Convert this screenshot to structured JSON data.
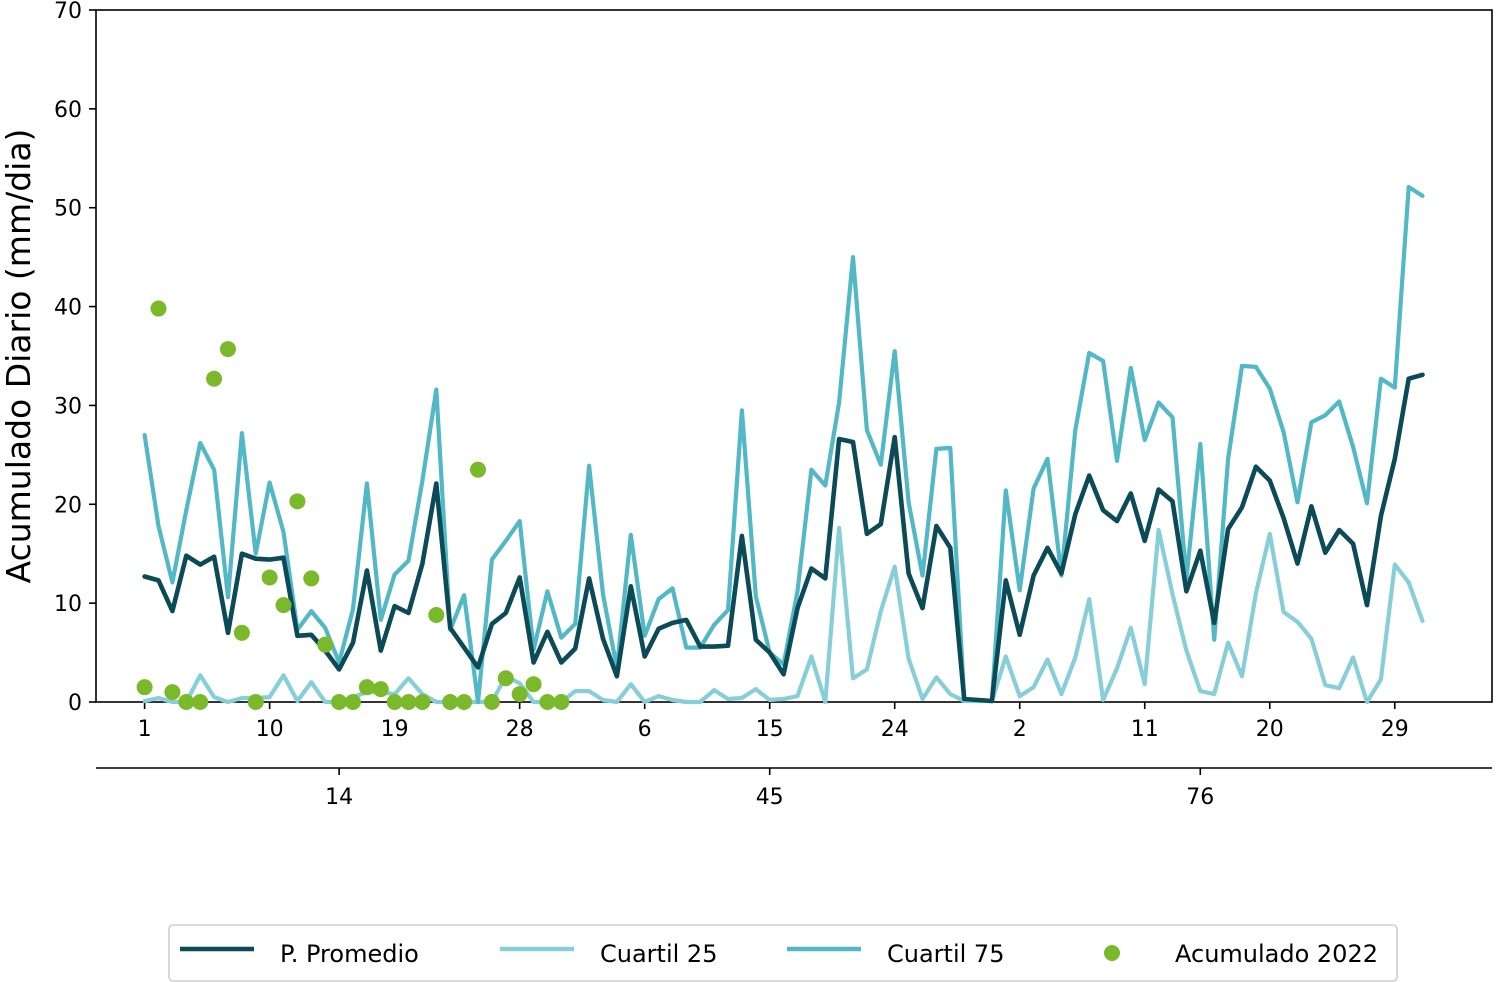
{
  "chart_data": {
    "type": "line",
    "ylabel": "Acumulado Diario (mm/dia)",
    "ylim": [
      0,
      70
    ],
    "yticks": [
      0,
      10,
      20,
      30,
      40,
      50,
      60,
      70
    ],
    "xlim": [
      -3.5,
      97
    ],
    "x": [
      0,
      1,
      2,
      3,
      4,
      5,
      6,
      7,
      8,
      9,
      10,
      11,
      12,
      13,
      14,
      15,
      16,
      17,
      18,
      19,
      20,
      21,
      22,
      23,
      24,
      25,
      26,
      27,
      28,
      29,
      30,
      31,
      32,
      33,
      34,
      35,
      36,
      37,
      38,
      39,
      40,
      41,
      42,
      43,
      44,
      45,
      46,
      47,
      48,
      49,
      50,
      51,
      52,
      53,
      54,
      55,
      56,
      57,
      58,
      59,
      60,
      61,
      62,
      63,
      64,
      65,
      66,
      67,
      68,
      69,
      70,
      71,
      72,
      73,
      74,
      75,
      76,
      77,
      78,
      79,
      80,
      81,
      82,
      83,
      84,
      85,
      86,
      87,
      88,
      89,
      90,
      91,
      92
    ],
    "xtick_labels_primary": [
      {
        "x": 0,
        "label": "1"
      },
      {
        "x": 9,
        "label": "10"
      },
      {
        "x": 18,
        "label": "19"
      },
      {
        "x": 27,
        "label": "28"
      },
      {
        "x": 36,
        "label": "6"
      },
      {
        "x": 45,
        "label": "15"
      },
      {
        "x": 54,
        "label": "24"
      },
      {
        "x": 63,
        "label": "2"
      },
      {
        "x": 72,
        "label": "11"
      },
      {
        "x": 81,
        "label": "20"
      },
      {
        "x": 90,
        "label": "29"
      }
    ],
    "xtick_labels_secondary": [
      {
        "x": 14,
        "label": "14"
      },
      {
        "x": 45,
        "label": "45"
      },
      {
        "x": 76,
        "label": "76"
      }
    ],
    "series": [
      {
        "name": "P. Promedio",
        "color": "#0b4a57",
        "style": "line",
        "values": [
          12.7,
          12.3,
          9.2,
          14.8,
          13.9,
          14.7,
          7.0,
          15.0,
          14.5,
          14.4,
          14.6,
          6.7,
          6.8,
          5.2,
          3.3,
          6.0,
          13.3,
          5.2,
          9.7,
          9.0,
          14.0,
          22.1,
          7.5,
          5.5,
          3.5,
          7.9,
          9.0,
          12.6,
          4.0,
          7.1,
          4.0,
          5.4,
          12.5,
          6.4,
          2.6,
          11.7,
          4.6,
          7.4,
          8.0,
          8.3,
          5.6,
          5.6,
          5.7,
          16.8,
          6.3,
          5.0,
          2.8,
          9.5,
          13.5,
          12.5,
          26.6,
          26.3,
          17.0,
          18.0,
          26.8,
          13.0,
          9.5,
          17.8,
          15.6,
          0.3,
          0.2,
          0.1,
          12.3,
          6.8,
          12.8,
          15.6,
          13.0,
          19.0,
          22.9,
          19.4,
          18.3,
          21.1,
          16.3,
          21.5,
          20.3,
          11.2,
          15.3,
          8.0,
          17.5,
          19.7,
          23.8,
          22.4,
          18.6,
          14.0,
          19.8,
          15.1,
          17.4,
          16.0,
          9.8,
          18.8,
          24.6,
          32.7,
          33.1
        ]
      },
      {
        "name": "Cuartil 25",
        "color": "#87cfd8",
        "style": "line",
        "values": [
          0.1,
          0.4,
          0.0,
          0.0,
          2.7,
          0.5,
          0.0,
          0.4,
          0.4,
          0.5,
          2.7,
          0.1,
          2.0,
          0.0,
          0.0,
          0.5,
          1.0,
          1.0,
          0.8,
          2.4,
          0.8,
          0.0,
          0.0,
          0.0,
          0.0,
          0.0,
          2.6,
          1.9,
          0.0,
          0.0,
          0.0,
          1.1,
          1.1,
          0.2,
          0.0,
          1.8,
          0.0,
          0.6,
          0.2,
          0.0,
          0.0,
          1.2,
          0.3,
          0.4,
          1.3,
          0.2,
          0.3,
          0.6,
          4.6,
          0.0,
          17.6,
          2.4,
          3.3,
          9.2,
          13.7,
          4.4,
          0.3,
          2.5,
          0.8,
          0.1,
          0.1,
          0.1,
          4.6,
          0.6,
          1.5,
          4.3,
          0.8,
          4.5,
          10.4,
          0.2,
          3.4,
          7.5,
          1.8,
          17.4,
          10.9,
          5.2,
          1.1,
          0.8,
          6.0,
          2.6,
          11.0,
          17.0,
          9.1,
          8.1,
          6.4,
          1.7,
          1.4,
          4.5,
          0.0,
          2.3,
          13.9,
          12.1,
          8.2
        ]
      },
      {
        "name": "Cuartil 75",
        "color": "#52b8c5",
        "style": "line",
        "values": [
          27.0,
          17.8,
          12.1,
          19.4,
          26.2,
          23.5,
          10.6,
          27.2,
          15.0,
          22.2,
          17.2,
          7.3,
          9.2,
          7.5,
          4.0,
          9.4,
          22.1,
          8.3,
          12.9,
          14.3,
          22.4,
          31.6,
          7.3,
          10.8,
          0.0,
          14.4,
          16.3,
          18.3,
          5.3,
          11.2,
          6.5,
          7.9,
          23.9,
          10.9,
          3.4,
          16.9,
          6.7,
          10.4,
          11.5,
          5.5,
          5.5,
          7.8,
          9.3,
          29.5,
          10.7,
          5.0,
          3.8,
          11.2,
          23.5,
          21.9,
          30.3,
          45.0,
          27.5,
          24.0,
          35.5,
          20.2,
          12.8,
          25.6,
          25.7,
          0.3,
          0.2,
          0.1,
          21.4,
          11.3,
          21.6,
          24.6,
          12.8,
          27.5,
          35.3,
          34.5,
          24.4,
          33.8,
          26.5,
          30.3,
          28.8,
          12.5,
          26.1,
          6.3,
          24.6,
          34.0,
          33.9,
          31.7,
          27.3,
          20.2,
          28.3,
          29.0,
          30.4,
          25.8,
          20.1,
          32.7,
          31.8,
          52.1,
          51.2
        ]
      },
      {
        "name": "Acumulado 2022",
        "color": "#7ab929",
        "style": "scatter",
        "points": [
          [
            0,
            1.5
          ],
          [
            1,
            39.8
          ],
          [
            2,
            1.0
          ],
          [
            3,
            0.0
          ],
          [
            4,
            0.0
          ],
          [
            5,
            32.7
          ],
          [
            6,
            35.7
          ],
          [
            7,
            7.0
          ],
          [
            8,
            0.0
          ],
          [
            9,
            12.6
          ],
          [
            10,
            9.8
          ],
          [
            11,
            20.3
          ],
          [
            12,
            12.5
          ],
          [
            13,
            5.8
          ],
          [
            14,
            0.0
          ],
          [
            15,
            0.0
          ],
          [
            16,
            1.5
          ],
          [
            17,
            1.3
          ],
          [
            18,
            0.0
          ],
          [
            19,
            0.0
          ],
          [
            20,
            0.0
          ],
          [
            21,
            8.8
          ],
          [
            22,
            0.0
          ],
          [
            23,
            0.0
          ],
          [
            24,
            23.5
          ],
          [
            25,
            0.0
          ],
          [
            26,
            2.4
          ],
          [
            27,
            0.8
          ],
          [
            28,
            1.8
          ],
          [
            29,
            0.0
          ],
          [
            30,
            0.0
          ]
        ]
      }
    ],
    "legend": {
      "placement": "bottom-center",
      "entries": [
        "P. Promedio",
        "Cuartil 25",
        "Cuartil 75",
        "Acumulado 2022"
      ]
    },
    "grid": false
  }
}
